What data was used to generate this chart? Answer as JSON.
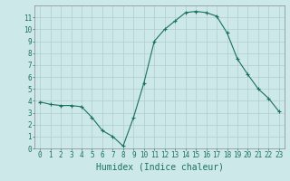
{
  "x": [
    0,
    1,
    2,
    3,
    4,
    5,
    6,
    7,
    8,
    9,
    10,
    11,
    12,
    13,
    14,
    15,
    16,
    17,
    18,
    19,
    20,
    21,
    22,
    23
  ],
  "y": [
    3.9,
    3.7,
    3.6,
    3.6,
    3.5,
    2.6,
    1.5,
    1.0,
    0.2,
    2.6,
    5.5,
    9.0,
    10.0,
    10.7,
    11.4,
    11.5,
    11.4,
    11.1,
    9.7,
    7.5,
    6.2,
    5.0,
    4.2,
    3.1
  ],
  "line_color": "#1a7060",
  "marker": "+",
  "markersize": 3,
  "linewidth": 0.8,
  "xlabel": "Humidex (Indice chaleur)",
  "xlim": [
    -0.5,
    23.5
  ],
  "ylim": [
    0,
    12
  ],
  "xticks": [
    0,
    1,
    2,
    3,
    4,
    5,
    6,
    7,
    8,
    9,
    10,
    11,
    12,
    13,
    14,
    15,
    16,
    17,
    18,
    19,
    20,
    21,
    22,
    23
  ],
  "yticks": [
    0,
    1,
    2,
    3,
    4,
    5,
    6,
    7,
    8,
    9,
    10,
    11
  ],
  "bg_color": "#cce8e8",
  "grid_color": "#b0cccc",
  "tick_fontsize": 5.5,
  "xlabel_fontsize": 7,
  "xlabel_color": "#1a7060"
}
